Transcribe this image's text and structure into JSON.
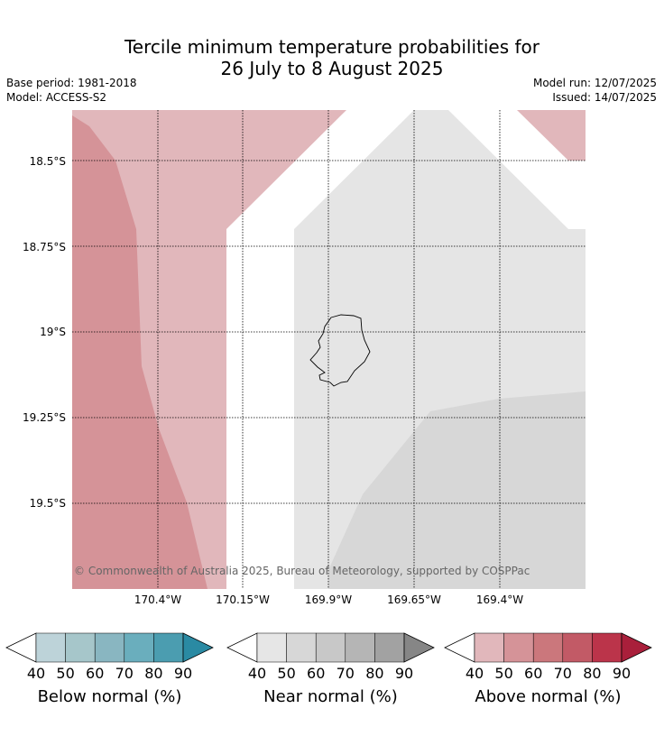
{
  "header": {
    "title_line1": "Tercile minimum temperature probabilities for",
    "title_line2": "26 July to 8 August 2025",
    "base_period": "Base period: 1981-2018",
    "model": "Model: ACCESS-S2",
    "model_run": "Model run: 12/07/2025",
    "issued": "Issued: 14/07/2025"
  },
  "map": {
    "lat_labels": [
      "18.5°S",
      "18.75°S",
      "19°S",
      "19.25°S",
      "19.5°S"
    ],
    "lon_labels": [
      "170.4°W",
      "170.15°W",
      "169.9°W",
      "169.65°W",
      "169.4°W"
    ],
    "credit": "© Commonwealth of Australia 2025, Bureau of Meteorology, supported by COSPPac",
    "colors": {
      "above_50": "#e1b7bb",
      "above_60": "#d59398",
      "near_50": "#e5e5e5",
      "near_60": "#d7d7d7",
      "no_signal": "#ffffff",
      "coastline": "#000000"
    }
  },
  "legend": [
    {
      "title": "Below normal (%)",
      "ticks": [
        "40",
        "50",
        "60",
        "70",
        "80",
        "90"
      ],
      "colors": [
        "#bdd3d9",
        "#a6c6ca",
        "#89b6c1",
        "#6aaebd",
        "#4b9db0",
        "#2a8aa3"
      ]
    },
    {
      "title": "Near normal (%)",
      "ticks": [
        "40",
        "50",
        "60",
        "70",
        "80",
        "90"
      ],
      "colors": [
        "#e6e6e6",
        "#d7d7d7",
        "#c8c8c8",
        "#b5b5b5",
        "#a2a2a2",
        "#868686"
      ]
    },
    {
      "title": "Above normal (%)",
      "ticks": [
        "40",
        "50",
        "60",
        "70",
        "80",
        "90"
      ],
      "colors": [
        "#e1b7bb",
        "#d59398",
        "#cb777c",
        "#c25a66",
        "#bb344a",
        "#a91f3b"
      ]
    }
  ]
}
